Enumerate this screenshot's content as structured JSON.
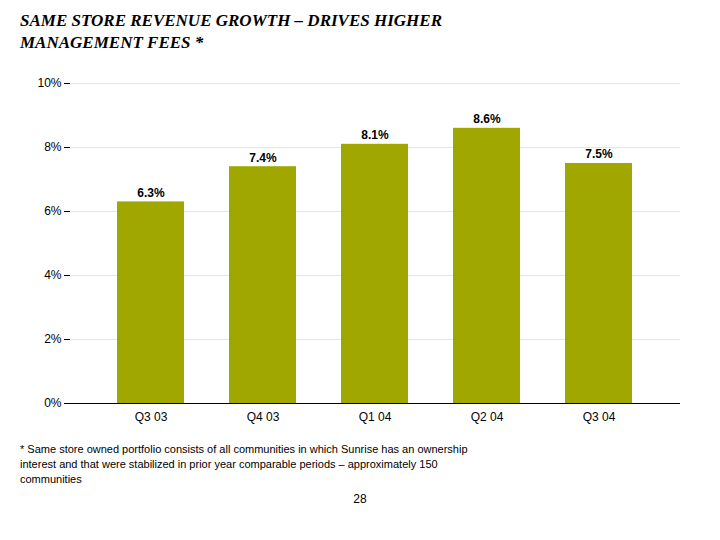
{
  "chart_data": {
    "type": "bar",
    "title": "SAME STORE REVENUE GROWTH – DRIVES HIGHER\nMANAGEMENT FEES  *",
    "categories": [
      "Q3 03",
      "Q4 03",
      "Q1 04",
      "Q2 04",
      "Q3 04"
    ],
    "values": [
      6.3,
      7.4,
      8.1,
      8.6,
      7.5
    ],
    "value_labels": [
      "6.3%",
      "7.4%",
      "8.1%",
      "8.6%",
      "7.5%"
    ],
    "data_labels": true,
    "color": "#a0a800",
    "ylim": [
      0,
      10
    ],
    "yticks": [
      {
        "value": 0,
        "label": "0%"
      },
      {
        "value": 2,
        "label": "2%"
      },
      {
        "value": 4,
        "label": "4%"
      },
      {
        "value": 6,
        "label": "6%"
      },
      {
        "value": 8,
        "label": "8%"
      },
      {
        "value": 10,
        "label": "10%"
      }
    ],
    "grid": true,
    "annotations": [
      "*  Same store owned portfolio consists of all communities in which Sunrise has an ownership",
      "interest and that were stabilized in prior year comparable periods – approximately 150",
      "communities",
      "28"
    ]
  }
}
